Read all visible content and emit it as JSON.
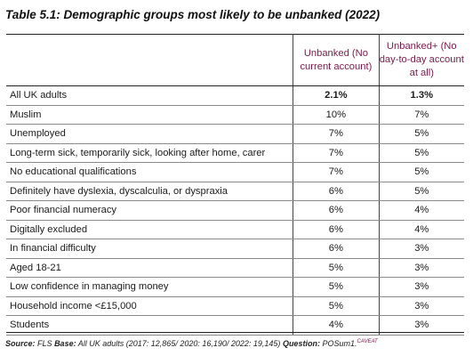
{
  "title": "Table 5.1: Demographic groups most likely to be unbanked (2022)",
  "table": {
    "headers": {
      "label": "",
      "col1": "Unbanked (No current account)",
      "col2": "Unbanked+ (No day-to-day account at all)"
    },
    "rows": [
      {
        "label": "All UK adults",
        "col1": "2.1%",
        "col2": "1.3%",
        "bold": true
      },
      {
        "label": "Muslim",
        "col1": "10%",
        "col2": "7%"
      },
      {
        "label": "Unemployed",
        "col1": "7%",
        "col2": "5%"
      },
      {
        "label": "Long-term sick, temporarily sick, looking after home, carer",
        "col1": "7%",
        "col2": "5%"
      },
      {
        "label": "No educational qualifications",
        "col1": "7%",
        "col2": "5%"
      },
      {
        "label": "Definitely have dyslexia, dyscalculia, or dyspraxia",
        "col1": "6%",
        "col2": "5%"
      },
      {
        "label": "Poor financial numeracy",
        "col1": "6%",
        "col2": "4%"
      },
      {
        "label": "Digitally excluded",
        "col1": "6%",
        "col2": "4%"
      },
      {
        "label": "In financial difficulty",
        "col1": "6%",
        "col2": "3%"
      },
      {
        "label": "Aged 18-21",
        "col1": "5%",
        "col2": "3%"
      },
      {
        "label": "Low confidence in managing money",
        "col1": "5%",
        "col2": "3%"
      },
      {
        "label": "Household income <£15,000",
        "col1": "5%",
        "col2": "3%"
      },
      {
        "label": "Students",
        "col1": "4%",
        "col2": "3%"
      }
    ]
  },
  "footer": {
    "source_label": "Source:",
    "source_value": "FLS",
    "base_label": "Base:",
    "base_value": "All UK adults (2017: 12,865/ 2020: 16,190/ 2022: 19,145)",
    "question_label": "Question:",
    "question_value": "POSum1.",
    "caveat": "CAVEAT"
  },
  "colors": {
    "header_text": "#7a1a4a"
  }
}
